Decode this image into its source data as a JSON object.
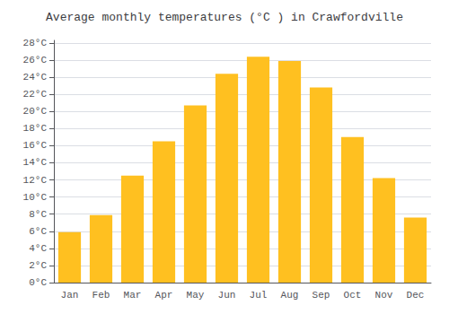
{
  "chart_data": {
    "type": "bar",
    "title": "Average monthly temperatures (°C ) in Crawfordville",
    "categories": [
      "Jan",
      "Feb",
      "Mar",
      "Apr",
      "May",
      "Jun",
      "Jul",
      "Aug",
      "Sep",
      "Oct",
      "Nov",
      "Dec"
    ],
    "values": [
      5.9,
      7.9,
      12.5,
      16.5,
      20.7,
      24.4,
      26.4,
      25.9,
      22.8,
      17.0,
      12.2,
      7.6
    ],
    "color": "#FFC020",
    "ylim": [
      0,
      28.3
    ],
    "yticks": [
      {
        "value": 0,
        "label": "0°C"
      },
      {
        "value": 2,
        "label": "2°C"
      },
      {
        "value": 4,
        "label": "4°C"
      },
      {
        "value": 6,
        "label": "6°C"
      },
      {
        "value": 8,
        "label": "8°C"
      },
      {
        "value": 10,
        "label": "10°C"
      },
      {
        "value": 12,
        "label": "12°C"
      },
      {
        "value": 14,
        "label": "14°C"
      },
      {
        "value": 16,
        "label": "16°C"
      },
      {
        "value": 18,
        "label": "18°C"
      },
      {
        "value": 20,
        "label": "20°C"
      },
      {
        "value": 22,
        "label": "22°C"
      },
      {
        "value": 24,
        "label": "24°C"
      },
      {
        "value": 26,
        "label": "26°C"
      },
      {
        "value": 28,
        "label": "28°C"
      }
    ],
    "grid": true
  }
}
